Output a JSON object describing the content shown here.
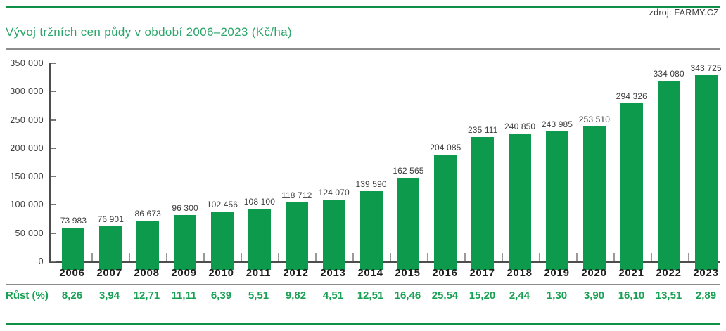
{
  "source_label": "zdroj: FARMY.CZ",
  "title": "Vývoj tržních cen půdy v období 2006–2023 (Kč/ha)",
  "growth_row_label": "Růst (%)",
  "colors": {
    "bar_green": "#0d9a4d",
    "accent_green": "#2ba56a",
    "growth_green": "#18a054",
    "line_green": "#0f9048",
    "rule_gray": "#8c8c8c",
    "axis_gray": "#4d4d4d",
    "text_dark": "#3d3d3d"
  },
  "chart_data": {
    "type": "bar",
    "title": "Vývoj tržních cen půdy v období 2006–2023 (Kč/ha)",
    "xlabel": "",
    "ylabel": "",
    "ylim": [
      0,
      350000
    ],
    "ytick_step": 50000,
    "ytick_labels": [
      "0",
      "50 000",
      "100 000",
      "150 000",
      "200 000",
      "250 000",
      "300 000",
      "350 000"
    ],
    "grid": false,
    "legend": "none",
    "categories": [
      "2006",
      "2007",
      "2008",
      "2009",
      "2010",
      "2011",
      "2012",
      "2013",
      "2014",
      "2015",
      "2016",
      "2017",
      "2018",
      "2019",
      "2020",
      "2021",
      "2022",
      "2023"
    ],
    "values": [
      73983,
      76901,
      86673,
      96300,
      102456,
      108100,
      118712,
      124070,
      139590,
      162565,
      204085,
      235111,
      240850,
      243985,
      253510,
      294326,
      334080,
      343725
    ],
    "value_labels": [
      "73 983",
      "76 901",
      "86 673",
      "96 300",
      "102 456",
      "108 100",
      "118 712",
      "124 070",
      "139 590",
      "162 565",
      "204 085",
      "235 111",
      "240 850",
      "243 985",
      "253 510",
      "294 326",
      "334 080",
      "343 725"
    ],
    "growth_row": {
      "label": "Růst (%)",
      "values_percent": [
        8.26,
        3.94,
        12.71,
        11.11,
        6.39,
        5.51,
        9.82,
        4.51,
        12.51,
        16.46,
        25.54,
        15.2,
        2.44,
        1.3,
        3.9,
        16.1,
        13.51,
        2.89
      ],
      "value_labels": [
        "8,26",
        "3,94",
        "12,71",
        "11,11",
        "6,39",
        "5,51",
        "9,82",
        "4,51",
        "12,51",
        "16,46",
        "25,54",
        "15,20",
        "2,44",
        "1,30",
        "3,90",
        "16,10",
        "13,51",
        "2,89"
      ]
    }
  }
}
